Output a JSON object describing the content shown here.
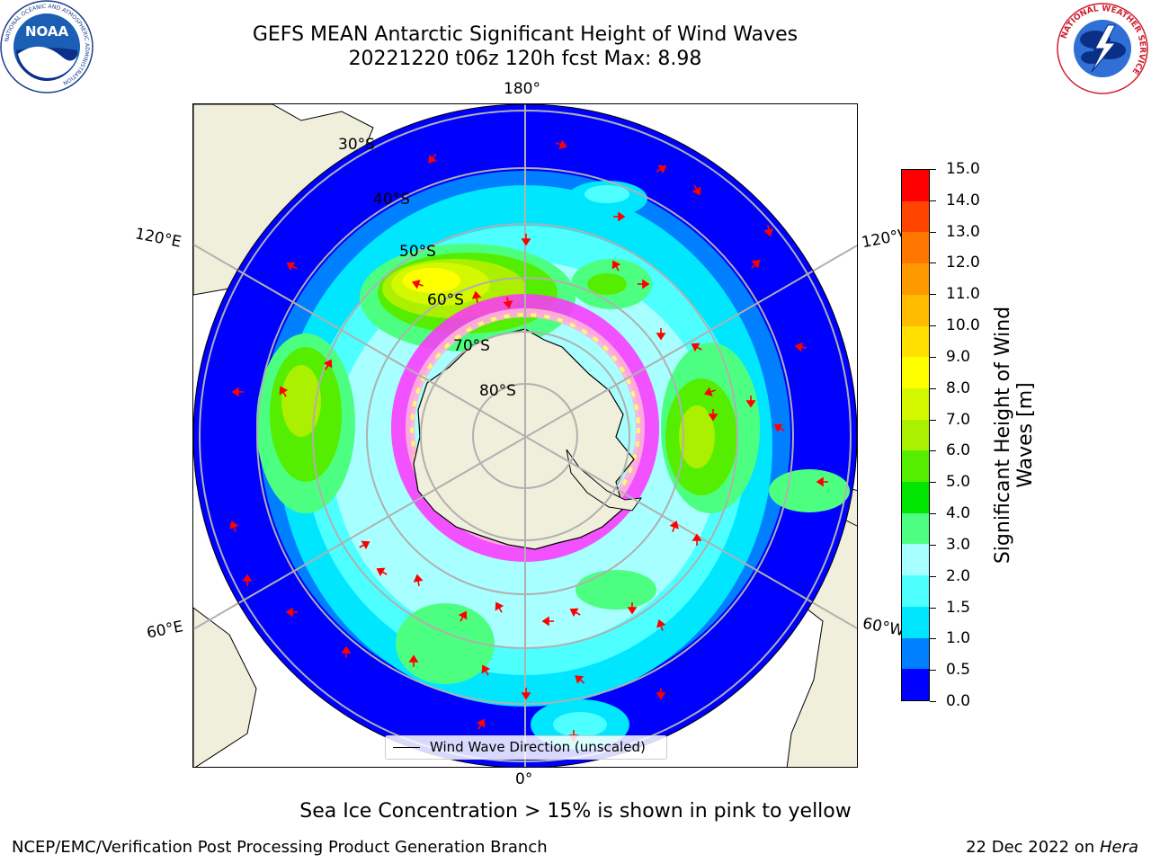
{
  "header": {
    "title_line1": "GEFS MEAN Antarctic Significant Height of Wind Waves",
    "title_line2": "20221220 t06z 120h fcst   Max: 8.98"
  },
  "logos": {
    "noaa": {
      "text": "NOAA",
      "ring_text": "NATIONAL OCEANIC AND ATMOSPHERIC ADMINISTRATION",
      "icon": "noaa-logo"
    },
    "nws": {
      "ring_text": "NATIONAL WEATHER SERVICE",
      "icon": "nws-logo"
    }
  },
  "map": {
    "projection": "south-polar-stereographic",
    "longitude_labels": {
      "top": "180°",
      "bottom": "0°",
      "upper_left": "120°E",
      "upper_right": "120°W",
      "lower_left": "60°E",
      "lower_right": "60°W"
    },
    "latitude_labels": [
      "30°S",
      "40°S",
      "50°S",
      "60°S",
      "70°S",
      "80°S"
    ],
    "legend": {
      "label": "Wind Wave Direction (unscaled)"
    },
    "colors": {
      "land": "#efefdc",
      "ocean_unfilled": "#ffffff",
      "arrows": "#ff0000",
      "grid": "#b0b0b0",
      "sea_ice": [
        "#ff33ff",
        "#ffb3d9",
        "#ffff66"
      ]
    }
  },
  "colorbar": {
    "title": "Significant Height of Wind Waves [m]",
    "tick_labels": [
      "0.0",
      "0.5",
      "1.0",
      "1.5",
      "2.0",
      "3.0",
      "4.0",
      "5.0",
      "6.0",
      "7.0",
      "8.0",
      "9.0",
      "10.0",
      "11.0",
      "12.0",
      "13.0",
      "14.0",
      "15.0"
    ],
    "colors": [
      "#0000ff",
      "#0080ff",
      "#00e6ff",
      "#4dffff",
      "#a8ffff",
      "#4dff80",
      "#00e600",
      "#55ee00",
      "#aaf000",
      "#d4f800",
      "#ffff00",
      "#ffe000",
      "#ffbb00",
      "#ff9900",
      "#ff7700",
      "#ff4400",
      "#ff0000"
    ]
  },
  "chart_data": {
    "type": "heatmap",
    "variable": "Significant Height of Wind Waves",
    "units": "m",
    "run_date": "20221220",
    "cycle": "t06z",
    "forecast_hour": "120h",
    "max": 8.98,
    "levels": [
      0.0,
      0.5,
      1.0,
      1.5,
      2.0,
      3.0,
      4.0,
      5.0,
      6.0,
      7.0,
      8.0,
      9.0,
      10.0,
      11.0,
      12.0,
      13.0,
      14.0,
      15.0
    ],
    "regions": [
      {
        "level": 1.0
      },
      {
        "level": 2.0
      },
      {
        "level": 3.0
      },
      {
        "level": 4.0
      },
      {
        "level": 5.0
      },
      {
        "level": 6.0
      },
      {
        "level": 7.0
      },
      {
        "level": 8.0
      }
    ]
  },
  "note": "Sea Ice Concentration > 15% is shown in pink to yellow",
  "footer": {
    "left": "NCEP/EMC/Verification Post Processing Product Generation Branch",
    "right_prefix": "22 Dec 2022 on ",
    "right_host": "Hera"
  }
}
